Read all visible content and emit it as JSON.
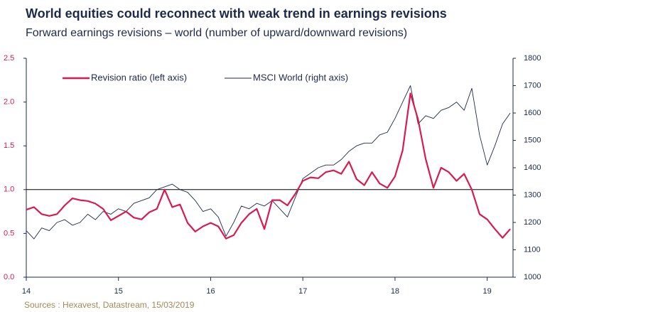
{
  "chart_data": {
    "type": "line",
    "title": "World equities could reconnect with weak trend in earnings revisions",
    "subtitle": "Forward earnings revisions – world (number of upward/downward revisions)",
    "source": "Sources : Hexavest, Datastream, 15/03/2019",
    "xlim": [
      14,
      19.28
    ],
    "xticks": [
      14,
      15,
      16,
      17,
      18,
      19
    ],
    "ylim": [
      0,
      2.5
    ],
    "yticks": [
      {
        "value": 0,
        "label": "0.0"
      },
      0.5,
      {
        "value": 1,
        "label": "1.0"
      },
      1.5,
      {
        "value": 2,
        "label": "2.0"
      },
      2.5
    ],
    "y2lim": [
      1000,
      1800
    ],
    "y2ticks": [
      1000,
      1100,
      1200,
      1300,
      1400,
      1500,
      1600,
      1700,
      1800
    ],
    "reference_line": 1,
    "legend": "top-left",
    "x": [
      14.0,
      14.083,
      14.167,
      14.25,
      14.333,
      14.417,
      14.5,
      14.583,
      14.667,
      14.75,
      14.833,
      14.917,
      15.0,
      15.083,
      15.167,
      15.25,
      15.333,
      15.417,
      15.5,
      15.583,
      15.667,
      15.75,
      15.833,
      15.917,
      16.0,
      16.083,
      16.167,
      16.25,
      16.333,
      16.417,
      16.5,
      16.583,
      16.667,
      16.75,
      16.833,
      16.917,
      17.0,
      17.083,
      17.167,
      17.25,
      17.333,
      17.417,
      17.5,
      17.583,
      17.667,
      17.75,
      17.833,
      17.917,
      18.0,
      18.083,
      18.167,
      18.25,
      18.333,
      18.417,
      18.5,
      18.583,
      18.667,
      18.75,
      18.833,
      18.917,
      19.0,
      19.083,
      19.167,
      19.25
    ],
    "series": [
      {
        "name": "Revision ratio (left axis)",
        "color": "#d81b50",
        "axis": "y",
        "values": [
          0.77,
          0.8,
          0.72,
          0.7,
          0.72,
          0.82,
          0.9,
          0.88,
          0.87,
          0.84,
          0.78,
          0.65,
          0.7,
          0.75,
          0.68,
          0.66,
          0.74,
          0.78,
          1.0,
          0.8,
          0.83,
          0.62,
          0.52,
          0.58,
          0.62,
          0.58,
          0.44,
          0.48,
          0.62,
          0.72,
          0.78,
          0.55,
          0.88,
          0.88,
          0.82,
          0.95,
          1.1,
          1.14,
          1.13,
          1.2,
          1.22,
          1.18,
          1.32,
          1.12,
          1.05,
          1.2,
          1.07,
          1.02,
          1.15,
          1.45,
          2.1,
          1.8,
          1.35,
          1.02,
          1.25,
          1.2,
          1.1,
          1.18,
          1.0,
          0.72,
          0.66,
          0.55,
          0.45,
          0.55
        ]
      },
      {
        "name": "MSCI World (right axis)",
        "color": "#1f2a4a",
        "axis": "y2",
        "values": [
          1170,
          1140,
          1180,
          1170,
          1200,
          1210,
          1190,
          1200,
          1230,
          1210,
          1240,
          1230,
          1250,
          1240,
          1270,
          1280,
          1290,
          1320,
          1330,
          1340,
          1320,
          1310,
          1280,
          1240,
          1250,
          1220,
          1150,
          1200,
          1260,
          1250,
          1270,
          1260,
          1280,
          1250,
          1220,
          1290,
          1360,
          1380,
          1400,
          1410,
          1410,
          1430,
          1460,
          1480,
          1490,
          1490,
          1520,
          1530,
          1580,
          1640,
          1700,
          1560,
          1590,
          1580,
          1610,
          1620,
          1640,
          1610,
          1690,
          1520,
          1410,
          1480,
          1560,
          1600
        ]
      }
    ]
  }
}
